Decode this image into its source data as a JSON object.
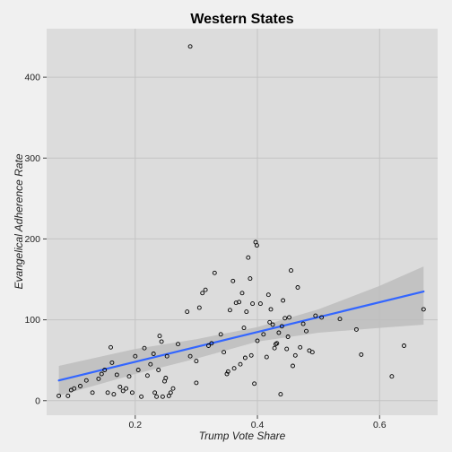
{
  "chart_data": {
    "type": "scatter",
    "title": "Western States",
    "xlabel": "Trump Vote Share",
    "ylabel": "Evangelical Adherence Rate",
    "xlim": [
      0.055,
      0.695
    ],
    "ylim": [
      -18,
      460
    ],
    "x_ticks": [
      0.2,
      0.4,
      0.6
    ],
    "x_tick_labels": [
      "0.2",
      "0.4",
      "0.6"
    ],
    "y_ticks": [
      0,
      100,
      200,
      300,
      400
    ],
    "y_tick_labels": [
      "0",
      "100",
      "200",
      "300",
      "400"
    ],
    "grid": true,
    "legend": "none",
    "colors": {
      "points": "#000000",
      "trend": "#3366ff",
      "band": "#bdbdbd",
      "panel": "#dcdcdc",
      "background": "#f0f0f0",
      "grid": "#c4c4c4"
    },
    "points": [
      {
        "x": 0.075,
        "y": 6
      },
      {
        "x": 0.09,
        "y": 6
      },
      {
        "x": 0.095,
        "y": 13
      },
      {
        "x": 0.1,
        "y": 15
      },
      {
        "x": 0.11,
        "y": 18
      },
      {
        "x": 0.12,
        "y": 25
      },
      {
        "x": 0.13,
        "y": 10
      },
      {
        "x": 0.14,
        "y": 27
      },
      {
        "x": 0.145,
        "y": 33
      },
      {
        "x": 0.15,
        "y": 38
      },
      {
        "x": 0.155,
        "y": 10
      },
      {
        "x": 0.16,
        "y": 66
      },
      {
        "x": 0.162,
        "y": 47
      },
      {
        "x": 0.165,
        "y": 8
      },
      {
        "x": 0.17,
        "y": 32
      },
      {
        "x": 0.175,
        "y": 17
      },
      {
        "x": 0.18,
        "y": 12
      },
      {
        "x": 0.185,
        "y": 15
      },
      {
        "x": 0.19,
        "y": 30
      },
      {
        "x": 0.195,
        "y": 10
      },
      {
        "x": 0.2,
        "y": 55
      },
      {
        "x": 0.205,
        "y": 38
      },
      {
        "x": 0.21,
        "y": 5
      },
      {
        "x": 0.215,
        "y": 65
      },
      {
        "x": 0.22,
        "y": 31
      },
      {
        "x": 0.225,
        "y": 45
      },
      {
        "x": 0.23,
        "y": 58
      },
      {
        "x": 0.232,
        "y": 10
      },
      {
        "x": 0.235,
        "y": 5
      },
      {
        "x": 0.238,
        "y": 38
      },
      {
        "x": 0.24,
        "y": 80
      },
      {
        "x": 0.243,
        "y": 73
      },
      {
        "x": 0.245,
        "y": 5
      },
      {
        "x": 0.248,
        "y": 24
      },
      {
        "x": 0.25,
        "y": 28
      },
      {
        "x": 0.252,
        "y": 55
      },
      {
        "x": 0.255,
        "y": 6
      },
      {
        "x": 0.258,
        "y": 10
      },
      {
        "x": 0.262,
        "y": 15
      },
      {
        "x": 0.27,
        "y": 70
      },
      {
        "x": 0.285,
        "y": 110
      },
      {
        "x": 0.29,
        "y": 55
      },
      {
        "x": 0.29,
        "y": 438
      },
      {
        "x": 0.3,
        "y": 49
      },
      {
        "x": 0.3,
        "y": 22
      },
      {
        "x": 0.305,
        "y": 115
      },
      {
        "x": 0.31,
        "y": 133
      },
      {
        "x": 0.315,
        "y": 137
      },
      {
        "x": 0.32,
        "y": 68
      },
      {
        "x": 0.325,
        "y": 71
      },
      {
        "x": 0.33,
        "y": 158
      },
      {
        "x": 0.34,
        "y": 82
      },
      {
        "x": 0.345,
        "y": 60
      },
      {
        "x": 0.35,
        "y": 33
      },
      {
        "x": 0.352,
        "y": 36
      },
      {
        "x": 0.355,
        "y": 112
      },
      {
        "x": 0.36,
        "y": 148
      },
      {
        "x": 0.362,
        "y": 40
      },
      {
        "x": 0.365,
        "y": 121
      },
      {
        "x": 0.37,
        "y": 122
      },
      {
        "x": 0.372,
        "y": 45
      },
      {
        "x": 0.375,
        "y": 133
      },
      {
        "x": 0.378,
        "y": 90
      },
      {
        "x": 0.38,
        "y": 53
      },
      {
        "x": 0.382,
        "y": 110
      },
      {
        "x": 0.385,
        "y": 177
      },
      {
        "x": 0.388,
        "y": 151
      },
      {
        "x": 0.39,
        "y": 56
      },
      {
        "x": 0.392,
        "y": 120
      },
      {
        "x": 0.395,
        "y": 21
      },
      {
        "x": 0.397,
        "y": 196
      },
      {
        "x": 0.399,
        "y": 192
      },
      {
        "x": 0.4,
        "y": 74
      },
      {
        "x": 0.405,
        "y": 120
      },
      {
        "x": 0.41,
        "y": 82
      },
      {
        "x": 0.415,
        "y": 54
      },
      {
        "x": 0.418,
        "y": 131
      },
      {
        "x": 0.42,
        "y": 97
      },
      {
        "x": 0.422,
        "y": 113
      },
      {
        "x": 0.425,
        "y": 94
      },
      {
        "x": 0.428,
        "y": 65
      },
      {
        "x": 0.43,
        "y": 70
      },
      {
        "x": 0.432,
        "y": 71
      },
      {
        "x": 0.435,
        "y": 84
      },
      {
        "x": 0.438,
        "y": 8
      },
      {
        "x": 0.44,
        "y": 92
      },
      {
        "x": 0.442,
        "y": 124
      },
      {
        "x": 0.445,
        "y": 102
      },
      {
        "x": 0.448,
        "y": 64
      },
      {
        "x": 0.45,
        "y": 79
      },
      {
        "x": 0.452,
        "y": 103
      },
      {
        "x": 0.455,
        "y": 161
      },
      {
        "x": 0.458,
        "y": 43
      },
      {
        "x": 0.462,
        "y": 56
      },
      {
        "x": 0.466,
        "y": 140
      },
      {
        "x": 0.47,
        "y": 66
      },
      {
        "x": 0.475,
        "y": 95
      },
      {
        "x": 0.48,
        "y": 86
      },
      {
        "x": 0.485,
        "y": 62
      },
      {
        "x": 0.49,
        "y": 60
      },
      {
        "x": 0.495,
        "y": 105
      },
      {
        "x": 0.505,
        "y": 103
      },
      {
        "x": 0.535,
        "y": 101
      },
      {
        "x": 0.562,
        "y": 88
      },
      {
        "x": 0.57,
        "y": 57
      },
      {
        "x": 0.62,
        "y": 30
      },
      {
        "x": 0.64,
        "y": 68
      },
      {
        "x": 0.672,
        "y": 113
      }
    ],
    "trend": {
      "x": [
        0.075,
        0.672
      ],
      "y": [
        25,
        135
      ]
    },
    "confidence_band": {
      "x": [
        0.075,
        0.2,
        0.3,
        0.4,
        0.5,
        0.6,
        0.672
      ],
      "lower": [
        6,
        33,
        52,
        73,
        84,
        90,
        94
      ],
      "upper": [
        43,
        64,
        76,
        91,
        113,
        142,
        166
      ]
    }
  }
}
